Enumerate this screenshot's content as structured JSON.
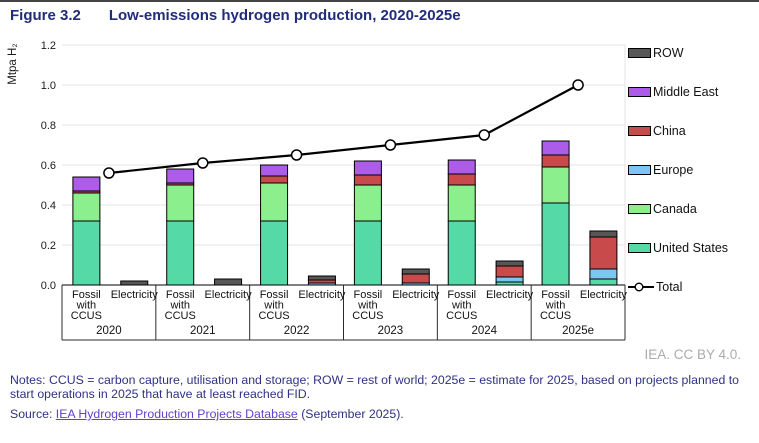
{
  "header": {
    "figure_label": "Figure 3.2",
    "title": "Low-emissions hydrogen production, 2020-2025e"
  },
  "chart_data": {
    "type": "bar",
    "subtype": "stacked-grouped-with-total-line",
    "title": "Low-emissions hydrogen production, 2020-2025e",
    "ylabel": "Mtpa H₂",
    "ylim": [
      0,
      1.2
    ],
    "yticks": [
      0,
      0.2,
      0.4,
      0.6,
      0.8,
      1.0,
      1.2
    ],
    "grid": "horizontal",
    "groups": [
      "2020",
      "2021",
      "2022",
      "2023",
      "2024",
      "2025e"
    ],
    "bars": [
      {
        "key": "fossil",
        "label": "Fossil with CCUS"
      },
      {
        "key": "electricity",
        "label": "Electricity"
      }
    ],
    "stack_order": [
      "United States",
      "Canada",
      "Europe",
      "China",
      "Middle East",
      "ROW"
    ],
    "series": {
      "fossil": {
        "United States": [
          0.32,
          0.32,
          0.32,
          0.32,
          0.32,
          0.41
        ],
        "Canada": [
          0.14,
          0.18,
          0.19,
          0.18,
          0.18,
          0.18
        ],
        "Europe": [
          0,
          0,
          0,
          0,
          0,
          0
        ],
        "China": [
          0.01,
          0.01,
          0.035,
          0.05,
          0.055,
          0.06
        ],
        "Middle East": [
          0.07,
          0.07,
          0.055,
          0.07,
          0.07,
          0.07
        ],
        "ROW": [
          0,
          0,
          0,
          0,
          0,
          0
        ]
      },
      "electricity": {
        "United States": [
          0,
          0,
          0,
          0,
          0.015,
          0.03
        ],
        "Canada": [
          0,
          0,
          0,
          0,
          0,
          0
        ],
        "Europe": [
          0,
          0,
          0.01,
          0.01,
          0.025,
          0.05
        ],
        "China": [
          0,
          0,
          0.015,
          0.045,
          0.055,
          0.16
        ],
        "Middle East": [
          0,
          0,
          0,
          0,
          0,
          0
        ],
        "ROW": [
          0.02,
          0.03,
          0.02,
          0.025,
          0.025,
          0.03
        ]
      }
    },
    "total_line": [
      0.56,
      0.61,
      0.65,
      0.7,
      0.75,
      1.0
    ],
    "legend_position": "right"
  },
  "legend": {
    "items": [
      {
        "label": "ROW",
        "swatch": "box",
        "color_key": "ROW"
      },
      {
        "label": "Middle East",
        "swatch": "box",
        "color_key": "Middle East"
      },
      {
        "label": "China",
        "swatch": "box",
        "color_key": "China"
      },
      {
        "label": "Europe",
        "swatch": "box",
        "color_key": "Europe"
      },
      {
        "label": "Canada",
        "swatch": "box",
        "color_key": "Canada"
      },
      {
        "label": "United States",
        "swatch": "box",
        "color_key": "United States"
      },
      {
        "label": "Total",
        "swatch": "line",
        "color_key": "total_line"
      }
    ]
  },
  "footer": {
    "attribution": "IEA. CC BY 4.0.",
    "notes": "Notes: CCUS = carbon capture, utilisation and storage; ROW = rest of world; 2025e = estimate for 2025, based on projects planned to start operations in 2025 that have at least reached FID.",
    "source_prefix": "Source: ",
    "source_link": "IEA Hydrogen Production Projects Database",
    "source_suffix": " (September 2025)."
  },
  "colors": {
    "United States": "#54D9A7",
    "Canada": "#8CEF8D",
    "Europe": "#7EC6F2",
    "China": "#C94A4A",
    "Middle East": "#AD5CE9",
    "ROW": "#575757",
    "total_line": "#000000",
    "grid": "#E3E3E3",
    "axis": "#000000",
    "tick_text": "#1A1A1A",
    "title": "#212C7B",
    "notes": "#2F3184",
    "link": "#6041CB",
    "attribution": "#ABABAB"
  }
}
